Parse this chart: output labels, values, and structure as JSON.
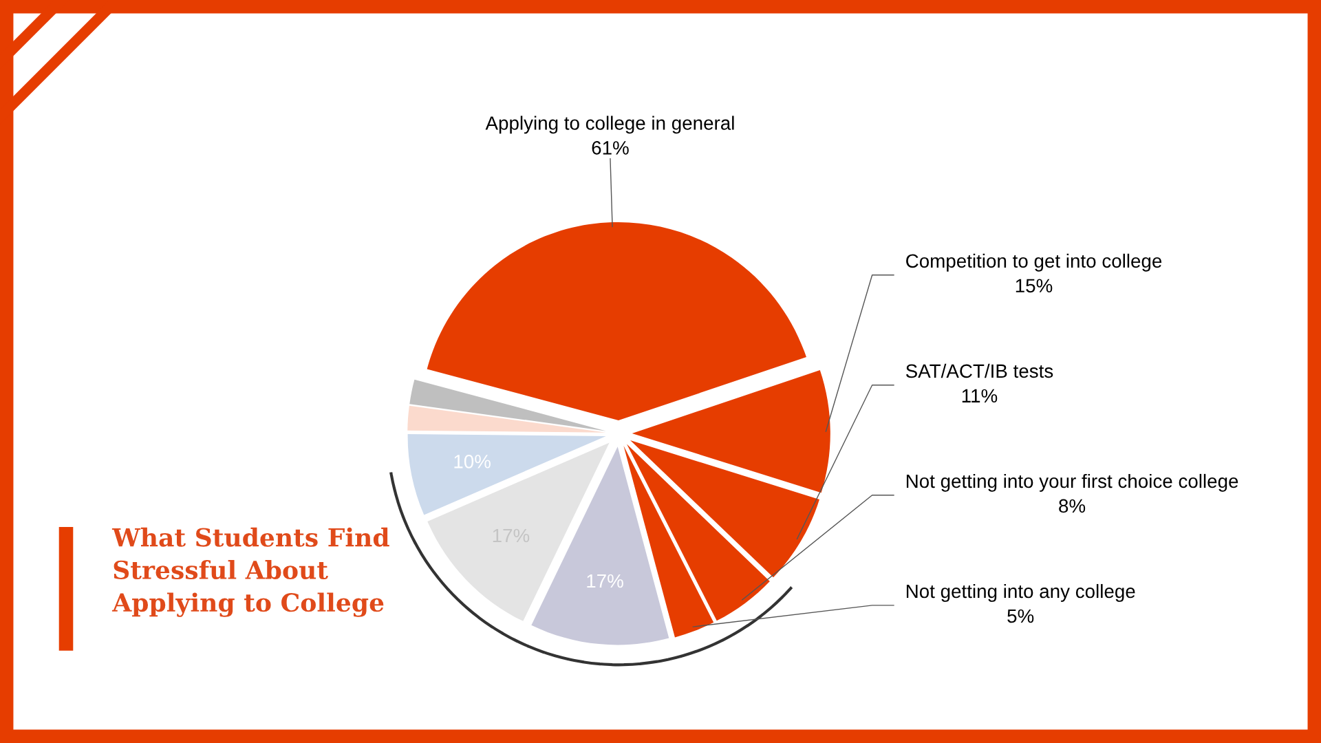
{
  "chart_data": {
    "type": "pie",
    "title": "What Students Find Stressful About Applying to College",
    "categories": [
      "Applying to college in general",
      "Competition to get into college",
      "SAT/ACT/IB tests",
      "Not getting into your first choice college",
      "Not getting into any college",
      null,
      null,
      null,
      null,
      null
    ],
    "values": [
      61,
      15,
      11,
      8,
      5,
      17,
      17,
      10,
      3,
      3
    ],
    "value_labels": [
      "61%",
      "15%",
      "11%",
      "8%",
      "5%",
      "17%",
      "17%",
      "10%",
      null,
      null
    ],
    "colors": [
      "#e63d00",
      "#e63d00",
      "#e63d00",
      "#e63d00",
      "#e63d00",
      "#c8c8da",
      "#e4e4e4",
      "#ccdaec",
      "#fbdacd",
      "#bfbfbf"
    ],
    "legend": false
  }
}
